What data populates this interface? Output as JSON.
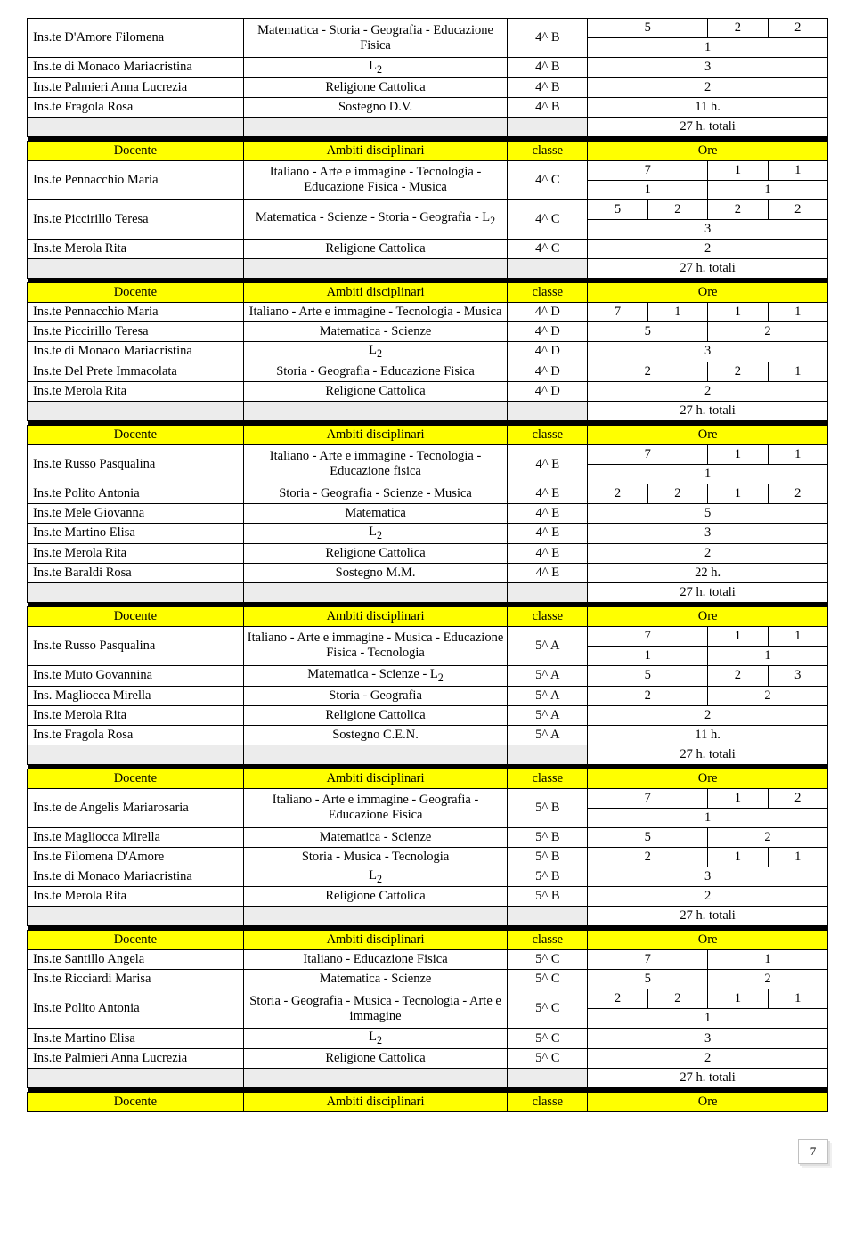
{
  "headers": {
    "docente": "Docente",
    "ambiti": "Ambiti disciplinari",
    "classe": "classe",
    "ore": "Ore"
  },
  "totals_label": "27 h. totali",
  "page_number": "7",
  "sections": [
    {
      "pre_rows": [
        {
          "teacher": "Ins.te D'Amore Filomena",
          "subjects": "Matematica - Storia - Geografia - Educazione Fisica",
          "class": "4^ B",
          "hours_top": [
            "5",
            "2",
            "2"
          ],
          "hours_bottom": [
            "1"
          ]
        },
        {
          "teacher": "Ins.te di Monaco Mariacristina",
          "subjects": "L<sub>2</sub>",
          "class": "4^ B",
          "hours": [
            "3"
          ]
        },
        {
          "teacher": "Ins.te Palmieri Anna Lucrezia",
          "subjects": "Religione Cattolica",
          "class": "4^ B",
          "hours": [
            "2"
          ]
        },
        {
          "teacher": "Ins.te Fragola Rosa",
          "subjects": "Sostegno D.V.",
          "class": "4^ B",
          "hours": [
            "11 h."
          ]
        }
      ]
    },
    {
      "rows": [
        {
          "teacher": "Ins.te Pennacchio Maria",
          "subjects": "Italiano - Arte e immagine - Tecnologia -<br>Educazione Fisica - Musica",
          "class": "4^ C",
          "hours_top": [
            "7",
            "1",
            "1"
          ],
          "hours_bottom": [
            "1",
            "1"
          ]
        },
        {
          "teacher": "Ins.te Piccirillo Teresa",
          "subjects": "Matematica - Scienze - Storia - Geografia - L<sub>2</sub>",
          "class": "4^ C",
          "hours_top": [
            "5",
            "2",
            "2",
            "2"
          ],
          "hours_bottom": [
            "3"
          ]
        },
        {
          "teacher": "Ins.te Merola Rita",
          "subjects": "Religione Cattolica",
          "class": "4^ C",
          "hours": [
            "2"
          ]
        }
      ]
    },
    {
      "rows": [
        {
          "teacher": "Ins.te Pennacchio Maria",
          "subjects": "Italiano - Arte e immagine - Tecnologia - Musica",
          "class": "4^ D",
          "hours": [
            "7",
            "1",
            "1",
            "1"
          ]
        },
        {
          "teacher": "Ins.te Piccirillo Teresa",
          "subjects": "Matematica - Scienze",
          "class": "4^ D",
          "hours": [
            "5",
            "2"
          ]
        },
        {
          "teacher": "Ins.te di Monaco Mariacristina",
          "subjects": "L<sub>2</sub>",
          "class": "4^ D",
          "hours": [
            "3"
          ]
        },
        {
          "teacher": "Ins.te Del Prete Immacolata",
          "subjects": "Storia - Geografia - Educazione Fisica",
          "class": "4^ D",
          "hours": [
            "2",
            "2",
            "1"
          ]
        },
        {
          "teacher": "Ins.te Merola Rita",
          "subjects": "Religione Cattolica",
          "class": "4^ D",
          "hours": [
            "2"
          ]
        }
      ]
    },
    {
      "rows": [
        {
          "teacher": "Ins.te Russo Pasqualina",
          "subjects": "Italiano - Arte e immagine - Tecnologia - Educazione fisica",
          "class": "4^ E",
          "hours_top": [
            "7",
            "1",
            "1"
          ],
          "hours_bottom": [
            "1"
          ]
        },
        {
          "teacher": "Ins.te Polito Antonia",
          "subjects": "Storia - Geografia - Scienze - Musica",
          "class": "4^ E",
          "hours": [
            "2",
            "2",
            "1",
            "2"
          ]
        },
        {
          "teacher": "Ins.te Mele Giovanna",
          "subjects": "Matematica",
          "class": "4^ E",
          "hours": [
            "5"
          ]
        },
        {
          "teacher": "Ins.te Martino Elisa",
          "subjects": "L<sub>2</sub>",
          "class": "4^ E",
          "hours": [
            "3"
          ]
        },
        {
          "teacher": "Ins.te Merola Rita",
          "subjects": "Religione Cattolica",
          "class": "4^ E",
          "hours": [
            "2"
          ]
        },
        {
          "teacher": "Ins.te Baraldi Rosa",
          "subjects": "Sostegno M.M.",
          "class": "4^ E",
          "hours": [
            "22 h."
          ]
        }
      ]
    },
    {
      "rows": [
        {
          "teacher": "Ins.te Russo Pasqualina",
          "subjects": "Italiano - Arte e immagine - Musica - Educazione Fisica - Tecnologia",
          "class": "5^ A",
          "hours_top": [
            "7",
            "1",
            "1"
          ],
          "hours_bottom": [
            "1",
            "1"
          ]
        },
        {
          "teacher": "Ins.te Muto Govannina",
          "subjects": "Matematica - Scienze - L<sub>2</sub>",
          "class": "5^ A",
          "hours": [
            "5",
            "2",
            "3"
          ]
        },
        {
          "teacher": "Ins. Magliocca Mirella",
          "subjects": "Storia - Geografia",
          "class": "5^ A",
          "hours": [
            "2",
            "2"
          ]
        },
        {
          "teacher": "Ins.te Merola Rita",
          "subjects": "Religione Cattolica",
          "class": "5^ A",
          "hours": [
            "2"
          ]
        },
        {
          "teacher": "Ins.te Fragola Rosa",
          "subjects": "Sostegno C.E.N.",
          "class": "5^ A",
          "hours": [
            "11 h."
          ]
        }
      ]
    },
    {
      "rows": [
        {
          "teacher": "Ins.te de Angelis Mariarosaria",
          "subjects": "Italiano - Arte e immagine - Geografia - Educazione Fisica",
          "class": "5^ B",
          "hours_top": [
            "7",
            "1",
            "2"
          ],
          "hours_bottom": [
            "1"
          ]
        },
        {
          "teacher": "Ins.te Magliocca Mirella",
          "subjects": "Matematica - Scienze",
          "class": "5^ B",
          "hours": [
            "5",
            "2"
          ]
        },
        {
          "teacher": "Ins.te Filomena D'Amore",
          "subjects": "Storia - Musica - Tecnologia",
          "class": "5^ B",
          "hours": [
            "2",
            "1",
            "1"
          ]
        },
        {
          "teacher": "Ins.te di Monaco Mariacristina",
          "subjects": "L<sub>2</sub>",
          "class": "5^ B",
          "hours": [
            "3"
          ]
        },
        {
          "teacher": "Ins.te Merola Rita",
          "subjects": "Religione Cattolica",
          "class": "5^ B",
          "hours": [
            "2"
          ]
        }
      ]
    },
    {
      "rows": [
        {
          "teacher": "Ins.te Santillo Angela",
          "subjects": "Italiano - Educazione Fisica",
          "class": "5^ C",
          "hours": [
            "7",
            "1"
          ]
        },
        {
          "teacher": "Ins.te Ricciardi Marisa",
          "subjects": "Matematica - Scienze",
          "class": "5^ C",
          "hours": [
            "5",
            "2"
          ]
        },
        {
          "teacher": "Ins.te Polito Antonia",
          "subjects": "Storia - Geografia - Musica - Tecnologia - Arte e immagine",
          "class": "5^ C",
          "hours_top": [
            "2",
            "2",
            "1",
            "1"
          ],
          "hours_bottom": [
            "1"
          ]
        },
        {
          "teacher": "Ins.te Martino Elisa",
          "subjects": "L<sub>2</sub>",
          "class": "5^ C",
          "hours": [
            "3"
          ]
        },
        {
          "teacher": "Ins.te Palmieri Anna Lucrezia",
          "subjects": "Religione Cattolica",
          "class": "5^ C",
          "hours": [
            "2"
          ]
        }
      ]
    }
  ]
}
